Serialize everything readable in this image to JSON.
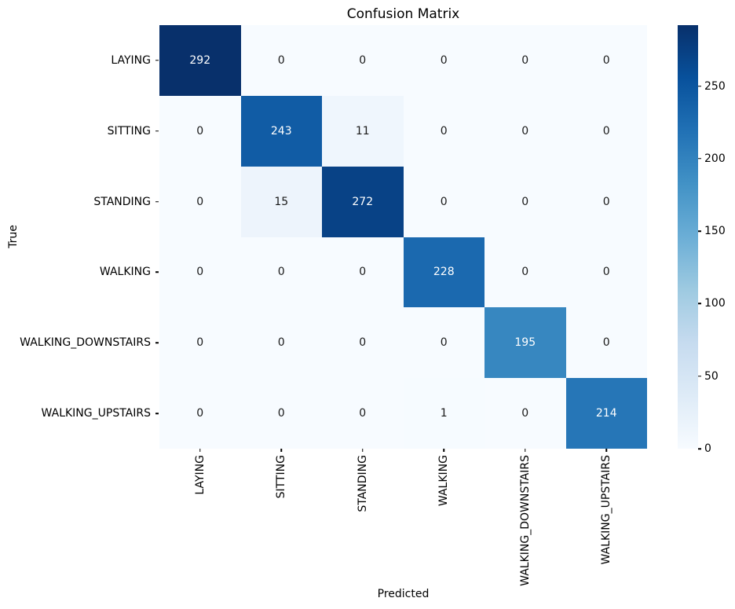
{
  "chart_data": {
    "type": "heatmap",
    "title": "Confusion Matrix",
    "xlabel": "Predicted",
    "ylabel": "True",
    "x_tick_labels": [
      "LAYING",
      "SITTING",
      "STANDING",
      "WALKING",
      "WALKING_DOWNSTAIRS",
      "WALKING_UPSTAIRS"
    ],
    "y_tick_labels": [
      "LAYING",
      "SITTING",
      "STANDING",
      "WALKING",
      "WALKING_DOWNSTAIRS",
      "WALKING_UPSTAIRS"
    ],
    "matrix": [
      [
        292,
        0,
        0,
        0,
        0,
        0
      ],
      [
        0,
        243,
        11,
        0,
        0,
        0
      ],
      [
        0,
        15,
        272,
        0,
        0,
        0
      ],
      [
        0,
        0,
        0,
        228,
        0,
        0
      ],
      [
        0,
        0,
        0,
        0,
        195,
        0
      ],
      [
        0,
        0,
        0,
        1,
        0,
        214
      ]
    ],
    "vmin": 0,
    "vmax": 292,
    "colorbar_ticks": [
      0,
      50,
      100,
      150,
      200,
      250
    ],
    "colormap": "Blues",
    "colormap_stops": [
      "#f7fbff",
      "#deebf7",
      "#c6dbef",
      "#9ecae1",
      "#6baed6",
      "#4292c6",
      "#2171b5",
      "#08519c",
      "#08306b"
    ],
    "annotation_colors": {
      "light": "#ffffff",
      "dark": "#1a1a1a"
    },
    "x_tick_rotation_deg": 90,
    "grid": false,
    "legend_position": "right-colorbar"
  }
}
